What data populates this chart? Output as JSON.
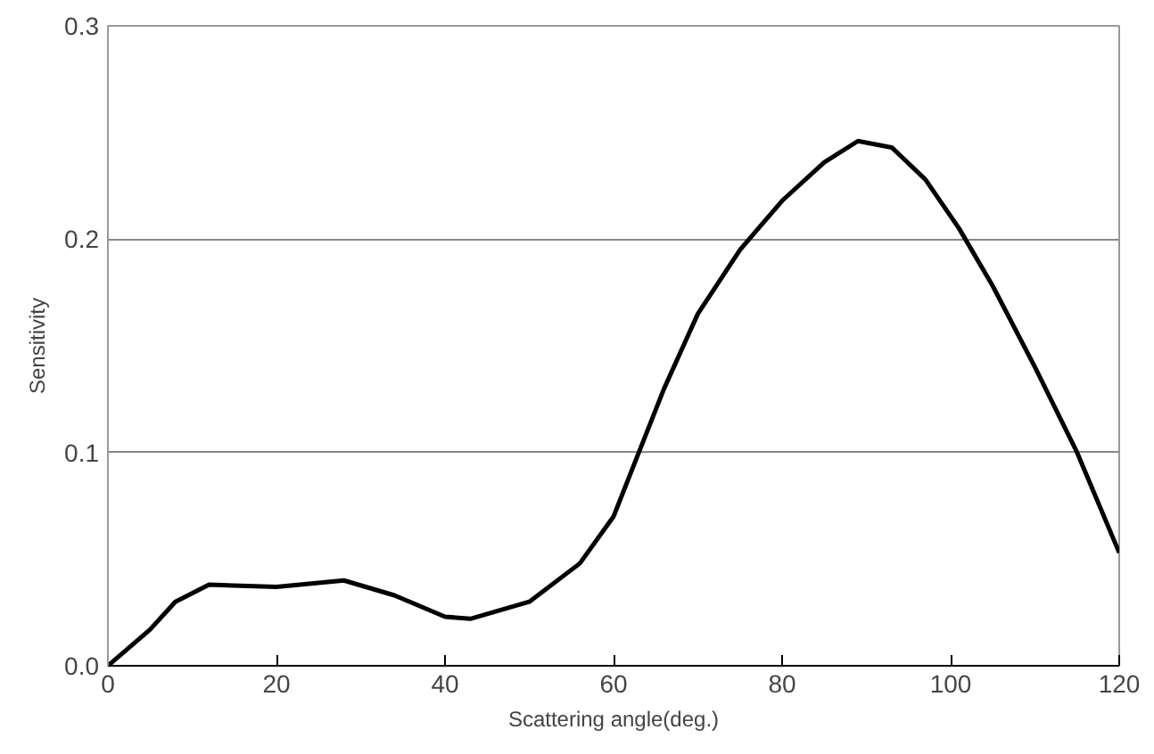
{
  "chart_data": {
    "type": "line",
    "xlabel": "Scattering angle(deg.)",
    "ylabel": "Sensitivity",
    "x": [
      0,
      5,
      8,
      12,
      20,
      28,
      34,
      40,
      43,
      50,
      56,
      60,
      63,
      66,
      70,
      75,
      80,
      85,
      89,
      93,
      97,
      101,
      105,
      110,
      115,
      120
    ],
    "series": [
      {
        "color": "#000000",
        "values": [
          0,
          0.017,
          0.03,
          0.038,
          0.037,
          0.04,
          0.033,
          0.023,
          0.022,
          0.03,
          0.048,
          0.07,
          0.1,
          0.13,
          0.165,
          0.195,
          0.218,
          0.236,
          0.246,
          0.243,
          0.228,
          0.205,
          0.178,
          0.14,
          0.1,
          0.053
        ]
      }
    ],
    "xlim": [
      0,
      120
    ],
    "ylim": [
      0,
      0.3
    ],
    "xticks": [
      0,
      20,
      40,
      60,
      80,
      100,
      120
    ],
    "yticks": [
      {
        "value": 0,
        "label": "0.0"
      },
      0.1,
      0.2,
      0.3
    ],
    "grid": "y",
    "marker": "none",
    "line_style": "solid"
  }
}
